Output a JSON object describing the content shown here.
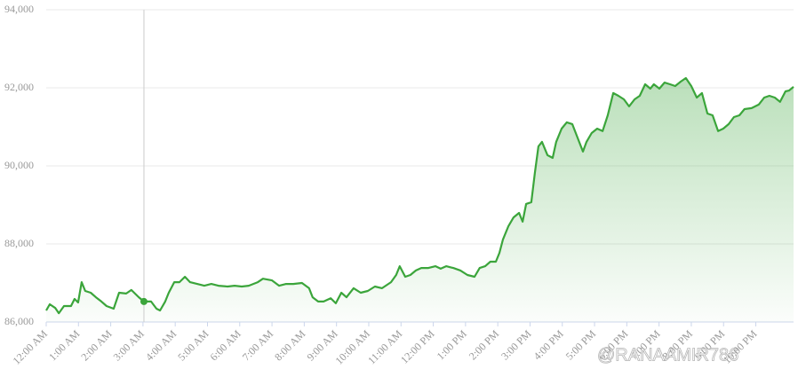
{
  "chart_data": {
    "type": "area",
    "x": [
      0,
      0.11,
      0.28,
      0.39,
      0.55,
      0.77,
      0.88,
      0.99,
      1.1,
      1.21,
      1.38,
      1.54,
      1.71,
      1.87,
      2.09,
      2.26,
      2.48,
      2.64,
      2.87,
      3.03,
      3.25,
      3.42,
      3.53,
      3.69,
      3.8,
      3.97,
      4.13,
      4.3,
      4.46,
      4.68,
      4.9,
      5.12,
      5.34,
      5.62,
      5.84,
      6.06,
      6.28,
      6.56,
      6.72,
      7.0,
      7.22,
      7.44,
      7.66,
      7.93,
      8.15,
      8.26,
      8.43,
      8.6,
      8.82,
      8.98,
      9.15,
      9.31,
      9.53,
      9.75,
      9.97,
      10.19,
      10.41,
      10.69,
      10.85,
      10.96,
      11.13,
      11.29,
      11.46,
      11.63,
      11.85,
      12.07,
      12.23,
      12.4,
      12.62,
      12.84,
      13.06,
      13.28,
      13.44,
      13.61,
      13.77,
      13.94,
      14.05,
      14.16,
      14.33,
      14.49,
      14.66,
      14.77,
      14.88,
      15.04,
      15.15,
      15.26,
      15.37,
      15.54,
      15.7,
      15.81,
      15.98,
      16.14,
      16.31,
      16.47,
      16.64,
      16.75,
      16.91,
      17.08,
      17.25,
      17.41,
      17.58,
      17.74,
      17.91,
      18.07,
      18.24,
      18.4,
      18.57,
      18.73,
      18.84,
      19.01,
      19.17,
      19.34,
      19.5,
      19.67,
      19.83,
      20.0,
      20.17,
      20.33,
      20.5,
      20.66,
      20.83,
      20.99,
      21.16,
      21.32,
      21.49,
      21.65,
      21.87,
      22.09,
      22.26,
      22.42,
      22.59,
      22.75,
      22.92,
      23.03,
      23.17
    ],
    "values": [
      86295,
      86455,
      86360,
      86225,
      86410,
      86410,
      86590,
      86500,
      87020,
      86795,
      86750,
      86635,
      86525,
      86410,
      86340,
      86750,
      86730,
      86820,
      86635,
      86525,
      86525,
      86340,
      86295,
      86525,
      86750,
      87020,
      87020,
      87160,
      87020,
      86975,
      86930,
      86975,
      86930,
      86910,
      86930,
      86910,
      86930,
      87020,
      87110,
      87065,
      86930,
      86975,
      86975,
      87000,
      86865,
      86635,
      86525,
      86525,
      86610,
      86480,
      86750,
      86635,
      86865,
      86750,
      86795,
      86910,
      86865,
      87020,
      87205,
      87430,
      87160,
      87205,
      87320,
      87385,
      87385,
      87430,
      87365,
      87430,
      87385,
      87320,
      87205,
      87160,
      87385,
      87430,
      87545,
      87545,
      87770,
      88115,
      88455,
      88680,
      88795,
      88570,
      89025,
      89070,
      89820,
      90500,
      90615,
      90275,
      90205,
      90615,
      90955,
      91115,
      91070,
      90730,
      90365,
      90615,
      90840,
      90955,
      90890,
      91295,
      91865,
      91795,
      91705,
      91525,
      91705,
      91795,
      92090,
      91980,
      92090,
      91980,
      92135,
      92090,
      92045,
      92160,
      92250,
      92045,
      91750,
      91865,
      91340,
      91295,
      90890,
      90955,
      91070,
      91250,
      91295,
      91455,
      91480,
      91570,
      91750,
      91795,
      91750,
      91640,
      91910,
      91930,
      92025
    ],
    "color": "#3ba53b",
    "highlight_index": 19,
    "xlim": [
      0,
      23.17
    ],
    "xticks": [
      {
        "value": 0,
        "label": "12:00 AM"
      },
      {
        "value": 1,
        "label": "1:00 AM"
      },
      {
        "value": 2,
        "label": "2:00 AM"
      },
      {
        "value": 3,
        "label": "3:00 AM"
      },
      {
        "value": 4,
        "label": "4:00 AM"
      },
      {
        "value": 5,
        "label": "5:00 AM"
      },
      {
        "value": 6,
        "label": "6:00 AM"
      },
      {
        "value": 7,
        "label": "7:00 AM"
      },
      {
        "value": 8,
        "label": "8:00 AM"
      },
      {
        "value": 9,
        "label": "9:00 AM"
      },
      {
        "value": 10,
        "label": "10:00 AM"
      },
      {
        "value": 11,
        "label": "11:00 AM"
      },
      {
        "value": 12,
        "label": "12:00 PM"
      },
      {
        "value": 13,
        "label": "1:00 PM"
      },
      {
        "value": 14,
        "label": "2:00 PM"
      },
      {
        "value": 15,
        "label": "3:00 PM"
      },
      {
        "value": 16,
        "label": "4:00 PM"
      },
      {
        "value": 17,
        "label": "5:00 PM"
      },
      {
        "value": 18,
        "label": "6:00 PM"
      },
      {
        "value": 19,
        "label": "7:00 PM"
      },
      {
        "value": 20,
        "label": "8:00 PM"
      },
      {
        "value": 21,
        "label": "9:00 PM"
      },
      {
        "value": 22,
        "label": "10:00 PM"
      }
    ],
    "ylim": [
      86000,
      94000
    ],
    "yticks": [
      {
        "value": 86000,
        "label": "86,000"
      },
      {
        "value": 88000,
        "label": "88,000"
      },
      {
        "value": 90000,
        "label": "90,000"
      },
      {
        "value": 92000,
        "label": "92,000"
      },
      {
        "value": 94000,
        "label": "94,000"
      }
    ],
    "grid": true,
    "watermark": "@RANAAMIR786"
  }
}
